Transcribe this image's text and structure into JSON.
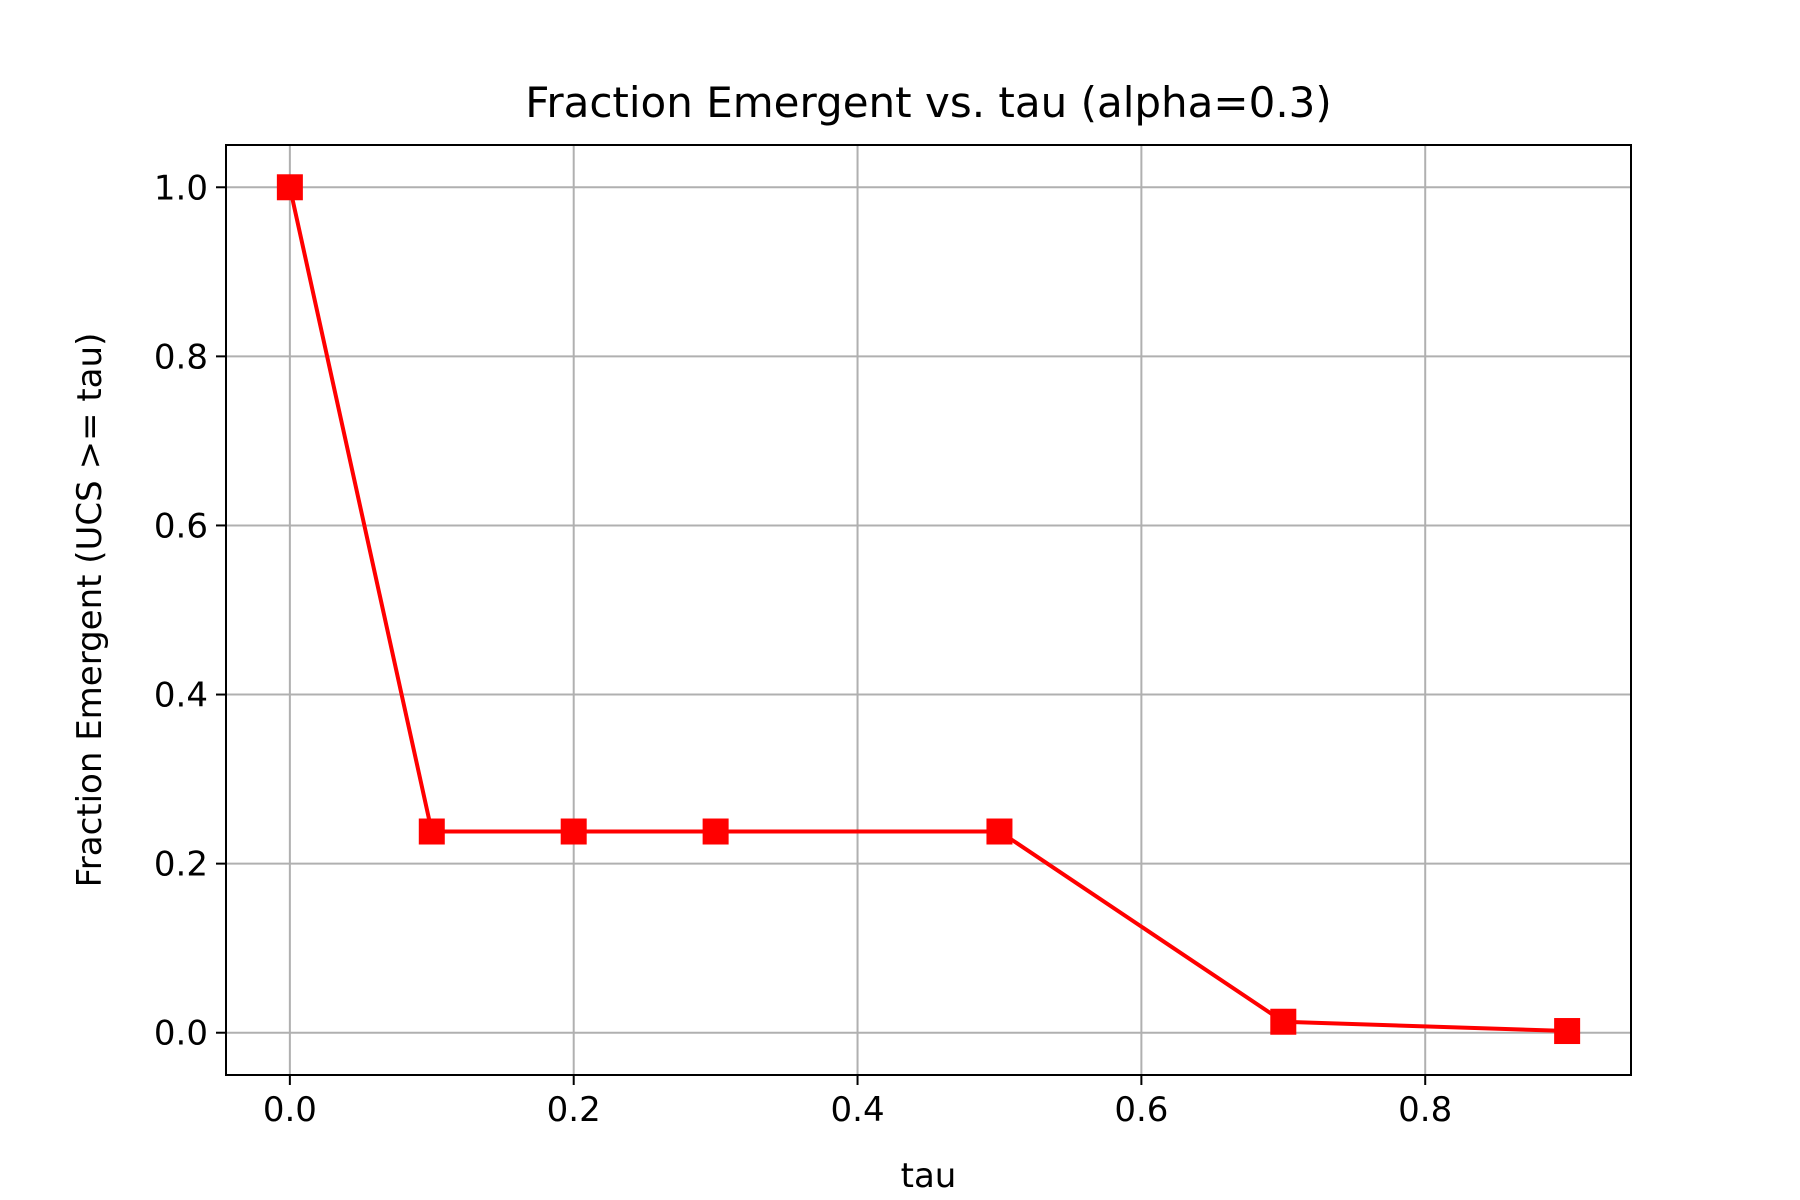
{
  "chart_data": {
    "type": "line",
    "title": "Fraction Emergent vs. tau (alpha=0.3)",
    "xlabel": "tau",
    "ylabel": "Fraction Emergent (UCS >= tau)",
    "xlim": [
      -0.045,
      0.945
    ],
    "ylim": [
      -0.05,
      1.05
    ],
    "xticks": [
      0.0,
      0.2,
      0.4,
      0.6,
      0.8
    ],
    "xtick_labels": [
      "0.0",
      "0.2",
      "0.4",
      "0.6",
      "0.8"
    ],
    "yticks": [
      0.0,
      0.2,
      0.4,
      0.6,
      0.8,
      1.0
    ],
    "ytick_labels": [
      "0.0",
      "0.2",
      "0.4",
      "0.6",
      "0.8",
      "1.0"
    ],
    "grid": true,
    "series": [
      {
        "x": [
          0.0,
          0.1,
          0.2,
          0.3,
          0.5,
          0.7,
          0.9
        ],
        "y": [
          1.0,
          0.238,
          0.238,
          0.238,
          0.238,
          0.013,
          0.002
        ],
        "color": "#ff0000",
        "marker": "square"
      }
    ]
  }
}
